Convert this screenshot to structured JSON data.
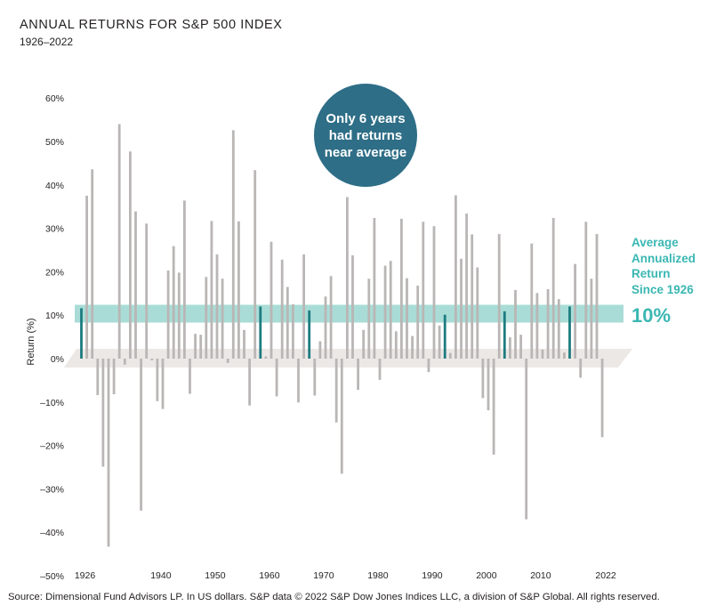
{
  "chart_data": {
    "type": "bar",
    "title": "ANNUAL RETURNS FOR S&P 500 INDEX",
    "subtitle": "1926–2022",
    "xlabel": "",
    "ylabel": "Return (%)",
    "ylim": [
      -50,
      60
    ],
    "yticks": [
      60,
      50,
      40,
      30,
      20,
      10,
      0,
      -10,
      -20,
      -30,
      -40,
      -50
    ],
    "ytick_labels": [
      "60%",
      "50%",
      "40%",
      "30%",
      "20%",
      "10%",
      "0%",
      "–10%",
      "–20%",
      "–30%",
      "–40%",
      "–50%"
    ],
    "xtick_labels": [
      {
        "year": 1926,
        "label": "1926"
      },
      {
        "year": 1940,
        "label": "1940"
      },
      {
        "year": 1950,
        "label": "1950"
      },
      {
        "year": 1960,
        "label": "1960"
      },
      {
        "year": 1970,
        "label": "1970"
      },
      {
        "year": 1980,
        "label": "1980"
      },
      {
        "year": 1990,
        "label": "1990"
      },
      {
        "year": 2000,
        "label": "2000"
      },
      {
        "year": 2010,
        "label": "2010"
      },
      {
        "year": 2022,
        "label": "2022"
      }
    ],
    "x_start": 1926,
    "x_end": 2022,
    "values": [
      11.6,
      37.5,
      43.6,
      -8.4,
      -24.9,
      -43.3,
      -8.2,
      54.0,
      -1.4,
      47.7,
      33.9,
      -35.0,
      31.1,
      -0.4,
      -9.8,
      -11.6,
      20.3,
      25.9,
      19.8,
      36.4,
      -8.1,
      5.7,
      5.5,
      18.8,
      31.7,
      24.0,
      18.4,
      -1.0,
      52.6,
      31.6,
      6.6,
      -10.8,
      43.4,
      12.0,
      0.5,
      26.9,
      -8.7,
      22.8,
      16.5,
      12.5,
      -10.1,
      24.0,
      11.1,
      -8.5,
      4.0,
      14.3,
      19.0,
      -14.7,
      -26.5,
      37.2,
      23.8,
      -7.2,
      6.6,
      18.4,
      32.4,
      -4.9,
      21.4,
      22.5,
      6.3,
      32.2,
      18.5,
      5.2,
      16.8,
      31.5,
      -3.1,
      30.5,
      7.6,
      10.1,
      1.3,
      37.6,
      23.0,
      33.4,
      28.6,
      21.0,
      -9.1,
      -11.9,
      -22.1,
      28.7,
      10.9,
      4.9,
      15.8,
      5.5,
      -37.0,
      26.5,
      15.1,
      2.1,
      16.0,
      32.4,
      13.7,
      1.4,
      12.0,
      21.8,
      -4.4,
      31.5,
      18.4,
      28.7,
      -18.1
    ],
    "highlight_years": [
      1926,
      1959,
      1968,
      1993,
      2004,
      2016
    ],
    "average": {
      "value": 10,
      "band": [
        8.3,
        12.4
      ],
      "label_lines": [
        "Average",
        "Annualized",
        "Return",
        "Since 1926"
      ],
      "value_label": "10%"
    },
    "annotations": [
      {
        "text_lines": [
          "Only 6 years",
          "had returns",
          "near average"
        ]
      }
    ],
    "colors": {
      "bar": "#b9b6b5",
      "highlight_bar": "#1d7c80",
      "band": "#a9dcd6",
      "floor": "#ece8e6",
      "callout": "#2e6e87",
      "accent_text": "#3ab7b3"
    }
  },
  "source": "Source: Dimensional Fund Advisors LP.  In US dollars. S&P data © 2022 S&P Dow Jones Indices LLC, a division of S&P Global. All rights reserved."
}
